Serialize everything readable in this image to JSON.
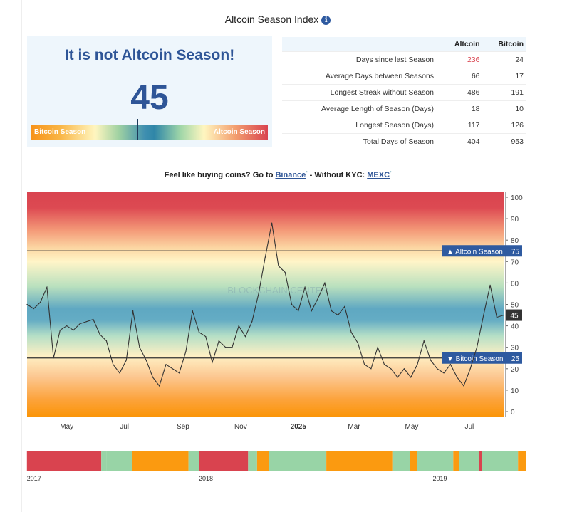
{
  "header": {
    "title": "Altcoin Season Index",
    "info_icon": "info-icon"
  },
  "status": {
    "headline": "It is not Altcoin Season!",
    "index_value": 45,
    "index_text": "45",
    "bar_left_label": "Bitcoin Season",
    "bar_right_label": "Altcoin Season"
  },
  "stats_table": {
    "columns": [
      "",
      "Altcoin",
      "Bitcoin"
    ],
    "rows": [
      {
        "label": "Days since last Season",
        "altcoin": "236",
        "bitcoin": "24"
      },
      {
        "label": "Average Days between Seasons",
        "altcoin": "66",
        "bitcoin": "17"
      },
      {
        "label": "Longest Streak without Season",
        "altcoin": "486",
        "bitcoin": "191"
      },
      {
        "label": "Average Length of Season (Days)",
        "altcoin": "18",
        "bitcoin": "10"
      },
      {
        "label": "Longest Season (Days)",
        "altcoin": "117",
        "bitcoin": "126"
      },
      {
        "label": "Total Days of Season",
        "altcoin": "404",
        "bitcoin": "953"
      }
    ],
    "highlight_color": "#d9434f"
  },
  "promo": {
    "prefix": "Feel like buying coins? Go to ",
    "link1": "Binance",
    "middle": " - Without KYC: ",
    "link2": "MEXC",
    "marker": "*"
  },
  "chart_data": [
    {
      "type": "line",
      "ylim": [
        0,
        100
      ],
      "yticks": [
        0,
        10,
        20,
        30,
        40,
        50,
        60,
        70,
        80,
        90,
        100
      ],
      "xtick_labels": [
        {
          "date": "2024-05-01",
          "label": "May"
        },
        {
          "date": "2024-07-01",
          "label": "Jul"
        },
        {
          "date": "2024-09-01",
          "label": "Sep"
        },
        {
          "date": "2024-11-01",
          "label": "Nov"
        },
        {
          "date": "2025-01-01",
          "label": "2025"
        },
        {
          "date": "2025-03-01",
          "label": "Mar"
        },
        {
          "date": "2025-05-01",
          "label": "May"
        },
        {
          "date": "2025-07-01",
          "label": "Jul"
        }
      ],
      "grid": false,
      "background": "vertical gradient red (high) to orange (low)",
      "thresholds": [
        {
          "label": "Altcoin Season",
          "value": 75,
          "text": "▲ Altcoin Season",
          "value_text": "75"
        },
        {
          "label": "Bitcoin Season",
          "value": 25,
          "text": "▼ Bitcoin Season",
          "value_text": "25"
        }
      ],
      "current": {
        "value": 45,
        "text": "45"
      },
      "watermark": "BLOCKCHAIN CENTER",
      "x": [
        "2024-03-20",
        "2024-03-27",
        "2024-04-03",
        "2024-04-10",
        "2024-04-17",
        "2024-04-24",
        "2024-05-01",
        "2024-05-08",
        "2024-05-15",
        "2024-05-22",
        "2024-05-29",
        "2024-06-05",
        "2024-06-12",
        "2024-06-19",
        "2024-06-26",
        "2024-07-03",
        "2024-07-10",
        "2024-07-17",
        "2024-07-24",
        "2024-07-31",
        "2024-08-07",
        "2024-08-14",
        "2024-08-21",
        "2024-08-28",
        "2024-09-04",
        "2024-09-11",
        "2024-09-18",
        "2024-09-25",
        "2024-10-02",
        "2024-10-09",
        "2024-10-16",
        "2024-10-23",
        "2024-10-30",
        "2024-11-06",
        "2024-11-13",
        "2024-11-20",
        "2024-11-27",
        "2024-12-04",
        "2024-12-11",
        "2024-12-18",
        "2024-12-25",
        "2025-01-01",
        "2025-01-08",
        "2025-01-15",
        "2025-01-22",
        "2025-01-29",
        "2025-02-05",
        "2025-02-12",
        "2025-02-19",
        "2025-02-26",
        "2025-03-05",
        "2025-03-12",
        "2025-03-19",
        "2025-03-26",
        "2025-04-02",
        "2025-04-09",
        "2025-04-16",
        "2025-04-23",
        "2025-04-30",
        "2025-05-07",
        "2025-05-14",
        "2025-05-21",
        "2025-05-28",
        "2025-06-04",
        "2025-06-11",
        "2025-06-18",
        "2025-06-25",
        "2025-07-02",
        "2025-07-09",
        "2025-07-16",
        "2025-07-23",
        "2025-07-30",
        "2025-08-06"
      ],
      "values": [
        50,
        48,
        51,
        58,
        25,
        38,
        40,
        38,
        41,
        42,
        43,
        36,
        33,
        22,
        18,
        24,
        47,
        30,
        24,
        16,
        12,
        22,
        20,
        18,
        28,
        47,
        37,
        35,
        23,
        33,
        30,
        30,
        40,
        35,
        42,
        55,
        72,
        88,
        68,
        65,
        50,
        47,
        58,
        47,
        53,
        60,
        47,
        45,
        49,
        37,
        32,
        22,
        20,
        30,
        22,
        20,
        16,
        20,
        16,
        22,
        33,
        24,
        20,
        18,
        22,
        16,
        12,
        20,
        30,
        45,
        59,
        44,
        45
      ],
      "x_range": [
        "2024-03-20",
        "2025-08-07"
      ]
    },
    {
      "type": "bar",
      "orientation": "timeline",
      "xtick_labels": [
        "2017",
        "2018",
        "2019"
      ],
      "colors": {
        "altcoin": "#d9434f",
        "bitcoin": "#fb9a10",
        "neutral": "#98d4a6"
      },
      "segments": [
        {
          "start": "2017-04-08",
          "end": "2017-08-02",
          "season": "altcoin"
        },
        {
          "start": "2017-08-02",
          "end": "2017-08-10",
          "season": "neutral"
        },
        {
          "start": "2017-08-10",
          "end": "2017-09-19",
          "season": "neutral"
        },
        {
          "start": "2017-09-19",
          "end": "2017-12-16",
          "season": "bitcoin"
        },
        {
          "start": "2017-12-16",
          "end": "2018-01-02",
          "season": "neutral"
        },
        {
          "start": "2018-01-02",
          "end": "2018-03-19",
          "season": "altcoin"
        },
        {
          "start": "2018-03-19",
          "end": "2018-04-02",
          "season": "neutral"
        },
        {
          "start": "2018-04-02",
          "end": "2018-04-20",
          "season": "bitcoin"
        },
        {
          "start": "2018-04-20",
          "end": "2018-07-19",
          "season": "neutral"
        },
        {
          "start": "2018-07-19",
          "end": "2018-10-30",
          "season": "bitcoin"
        },
        {
          "start": "2018-10-30",
          "end": "2018-11-27",
          "season": "neutral"
        },
        {
          "start": "2018-11-27",
          "end": "2018-12-07",
          "season": "bitcoin"
        },
        {
          "start": "2018-12-07",
          "end": "2019-02-02",
          "season": "neutral"
        },
        {
          "start": "2019-02-02",
          "end": "2019-02-11",
          "season": "bitcoin"
        },
        {
          "start": "2019-02-11",
          "end": "2019-03-14",
          "season": "neutral"
        },
        {
          "start": "2019-03-14",
          "end": "2019-03-19",
          "season": "altcoin"
        },
        {
          "start": "2019-03-19",
          "end": "2019-05-14",
          "season": "neutral"
        },
        {
          "start": "2019-05-14",
          "end": "2019-05-27",
          "season": "bitcoin"
        }
      ],
      "year_ticks": [
        {
          "date": "2017-04-08",
          "label": "2017"
        },
        {
          "date": "2018-01-01",
          "label": "2018"
        },
        {
          "date": "2019-01-01",
          "label": "2019"
        }
      ]
    }
  ]
}
